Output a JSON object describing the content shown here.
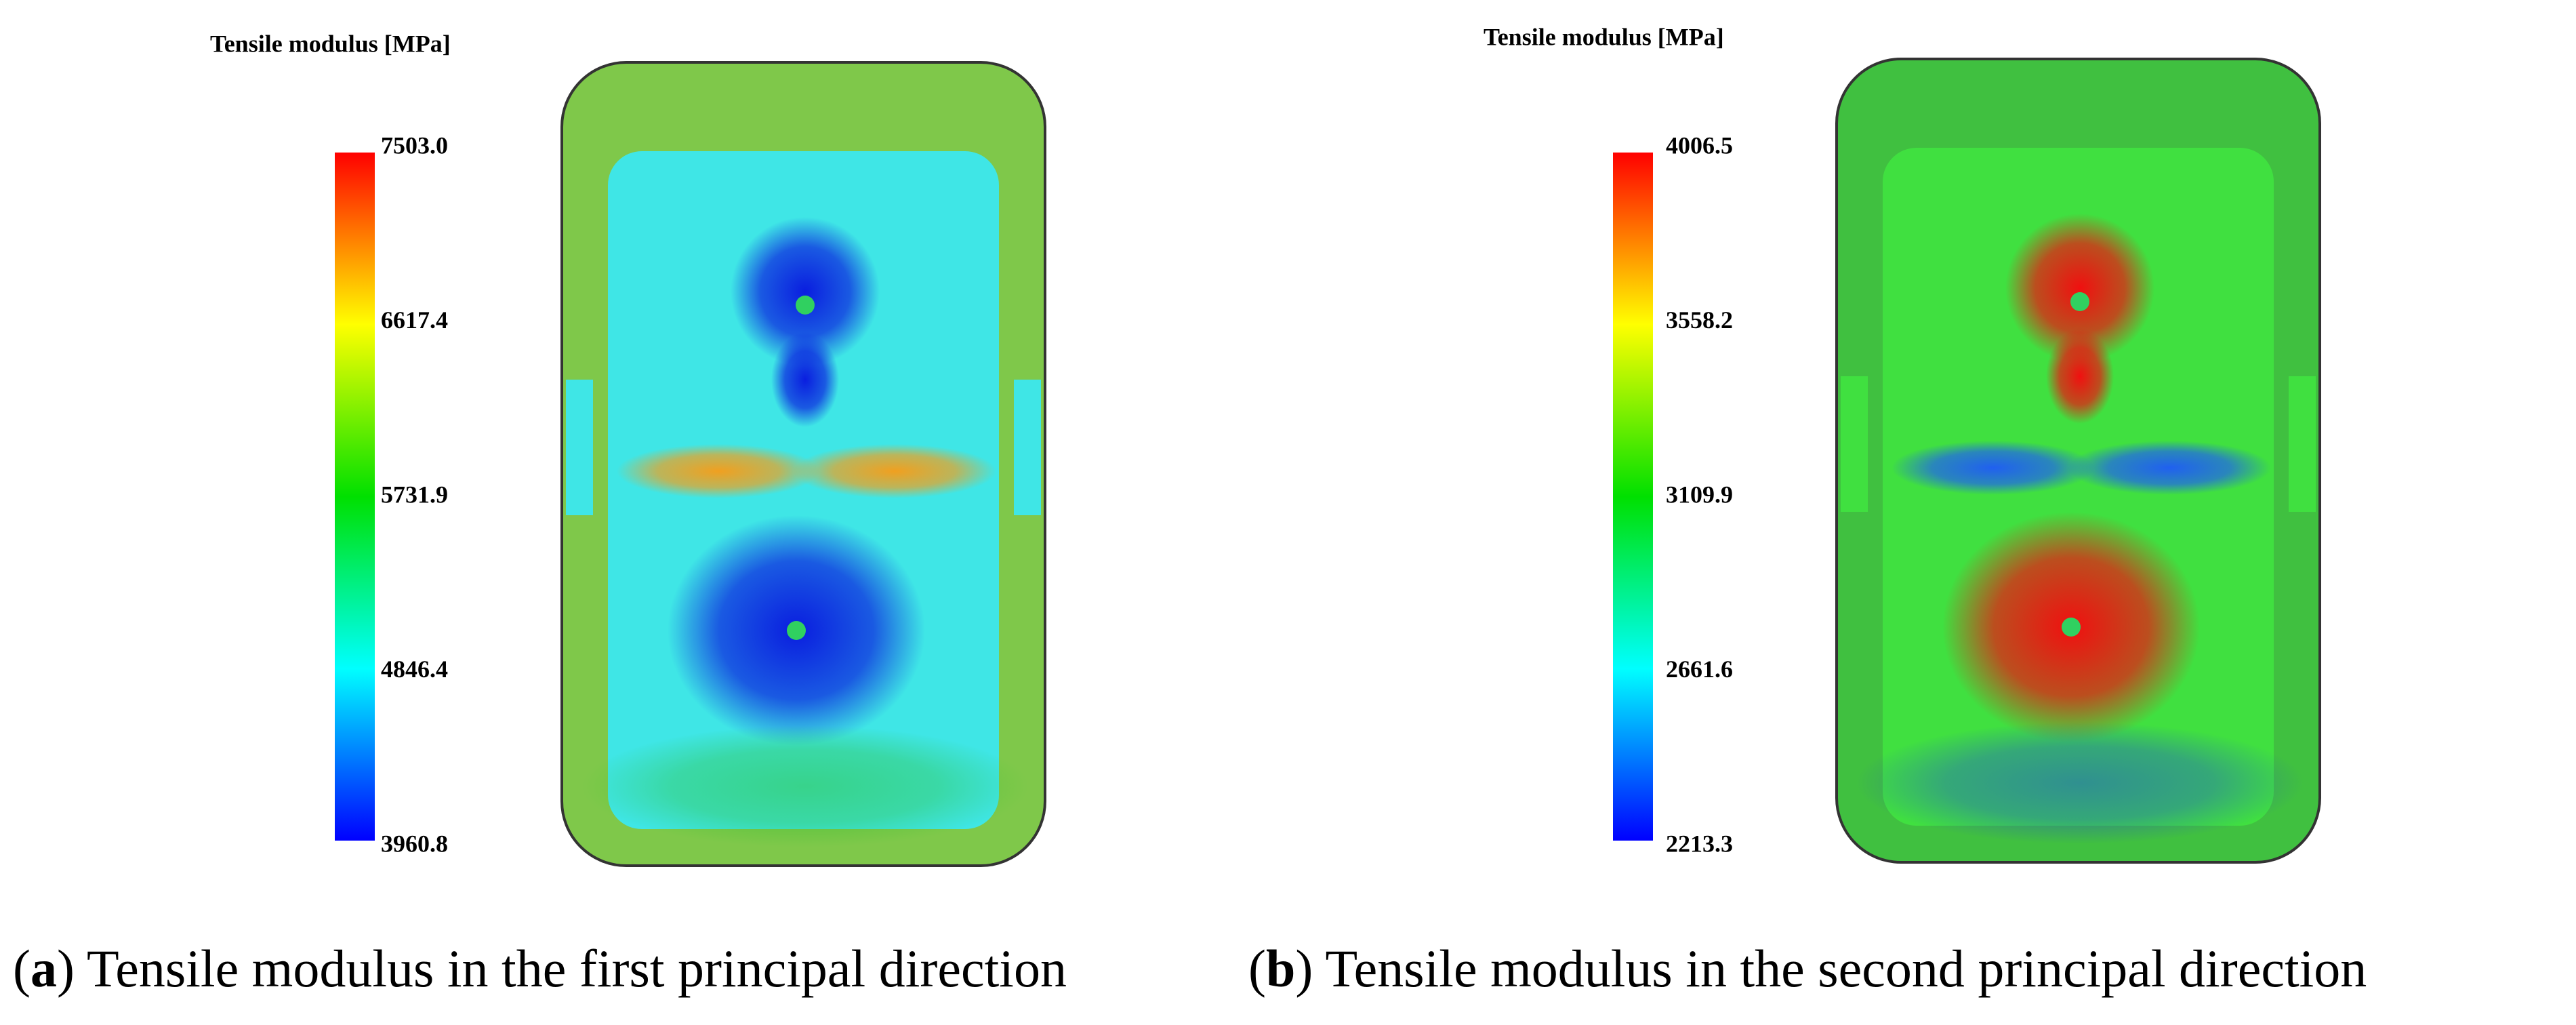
{
  "panels": [
    {
      "title": "Tensile modulus [MPa]",
      "colorbar_ticks": [
        "7503.0",
        "6617.4",
        "5731.9",
        "4846.4",
        "3960.8"
      ],
      "caption": {
        "prefix": "(",
        "label": "a",
        "text": ") Tensile modulus in the first principal direction"
      }
    },
    {
      "title": "Tensile modulus [MPa]",
      "colorbar_ticks": [
        "4006.5",
        "3558.2",
        "3109.9",
        "2661.6",
        "2213.3"
      ],
      "caption": {
        "prefix": "(",
        "label": "b",
        "text": ") Tensile modulus in the second principal direction"
      }
    }
  ]
}
